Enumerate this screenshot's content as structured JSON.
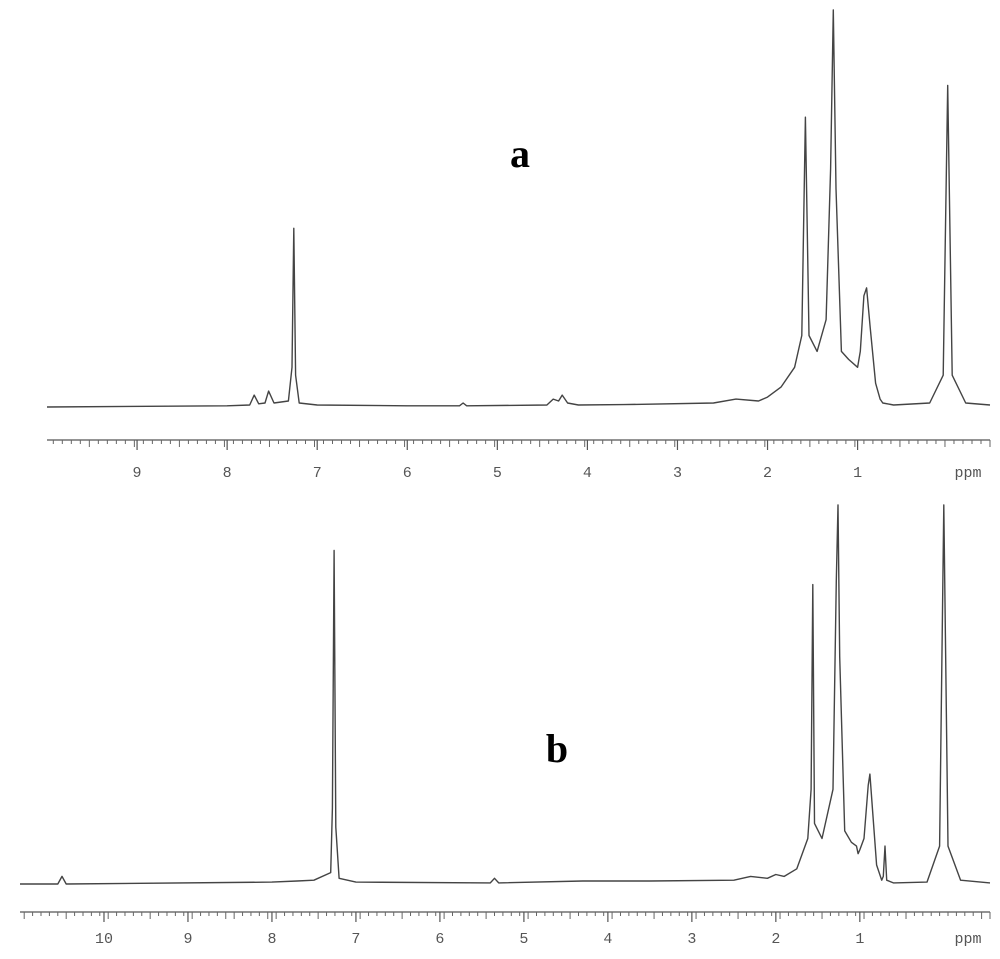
{
  "chart_data": [
    {
      "type": "line",
      "annotation": "a",
      "x_label": "ppm",
      "color": "#444444",
      "xlim": [
        10,
        -0.47
      ],
      "ylim": [
        0,
        100
      ],
      "minor_tick_step": 0.1,
      "xticks": [
        9,
        8,
        7,
        6,
        5,
        4,
        3,
        2,
        1
      ],
      "x": [
        10,
        8.0,
        7.75,
        7.7,
        7.65,
        7.58,
        7.54,
        7.48,
        7.32,
        7.28,
        7.26,
        7.24,
        7.2,
        7.0,
        6.0,
        5.42,
        5.38,
        5.34,
        4.45,
        4.38,
        4.32,
        4.28,
        4.22,
        4.1,
        3.6,
        2.6,
        2.35,
        2.1,
        2.0,
        1.85,
        1.7,
        1.62,
        1.58,
        1.54,
        1.45,
        1.35,
        1.3,
        1.27,
        1.24,
        1.18,
        1.1,
        1.0,
        0.97,
        0.93,
        0.9,
        0.86,
        0.8,
        0.75,
        0.72,
        0.6,
        0.2,
        0.05,
        0.0,
        -0.05,
        -0.2,
        -0.47
      ],
      "values": [
        0,
        0.3,
        0.5,
        3,
        0.8,
        1,
        4,
        1,
        1.5,
        10,
        45,
        8,
        1,
        0.5,
        0.3,
        0.3,
        1,
        0.3,
        0.5,
        2,
        1.5,
        3,
        1,
        0.5,
        0.6,
        1,
        2,
        1.5,
        2.5,
        5,
        10,
        18,
        73,
        18,
        14,
        22,
        60,
        100,
        55,
        14,
        12,
        10,
        14,
        28,
        30,
        20,
        6,
        2,
        1,
        0.5,
        1,
        8,
        81,
        8,
        1,
        0.5
      ]
    },
    {
      "type": "line",
      "annotation": "b",
      "x_label": "ppm",
      "color": "#444444",
      "xlim": [
        11,
        -0.55
      ],
      "ylim": [
        0,
        100
      ],
      "minor_tick_step": 0.1,
      "xticks": [
        10,
        9,
        8,
        7,
        6,
        5,
        4,
        3,
        2,
        1
      ],
      "x": [
        11,
        10.55,
        10.5,
        10.45,
        8.0,
        7.7,
        7.5,
        7.3,
        7.28,
        7.26,
        7.24,
        7.2,
        7.0,
        5.4,
        5.35,
        5.3,
        4.3,
        3.5,
        2.5,
        2.3,
        2.1,
        2.0,
        1.9,
        1.75,
        1.62,
        1.58,
        1.56,
        1.54,
        1.45,
        1.32,
        1.28,
        1.26,
        1.24,
        1.18,
        1.1,
        1.04,
        1.02,
        1.0,
        0.95,
        0.9,
        0.88,
        0.85,
        0.8,
        0.74,
        0.72,
        0.7,
        0.68,
        0.6,
        0.2,
        0.05,
        0.0,
        -0.05,
        -0.2,
        -0.55
      ],
      "values": [
        0,
        0,
        2,
        0,
        0.5,
        0.8,
        1,
        3,
        20,
        88,
        15,
        1.5,
        0.5,
        0.3,
        1.5,
        0.3,
        0.8,
        0.8,
        1,
        2,
        1.5,
        2.5,
        2,
        4,
        12,
        25,
        79,
        16,
        12,
        25,
        80,
        100,
        60,
        14,
        11,
        10,
        8,
        9,
        12,
        26,
        29,
        20,
        5,
        1,
        2,
        10,
        1,
        0.3,
        0.5,
        10,
        100,
        10,
        1,
        0.3
      ]
    }
  ]
}
